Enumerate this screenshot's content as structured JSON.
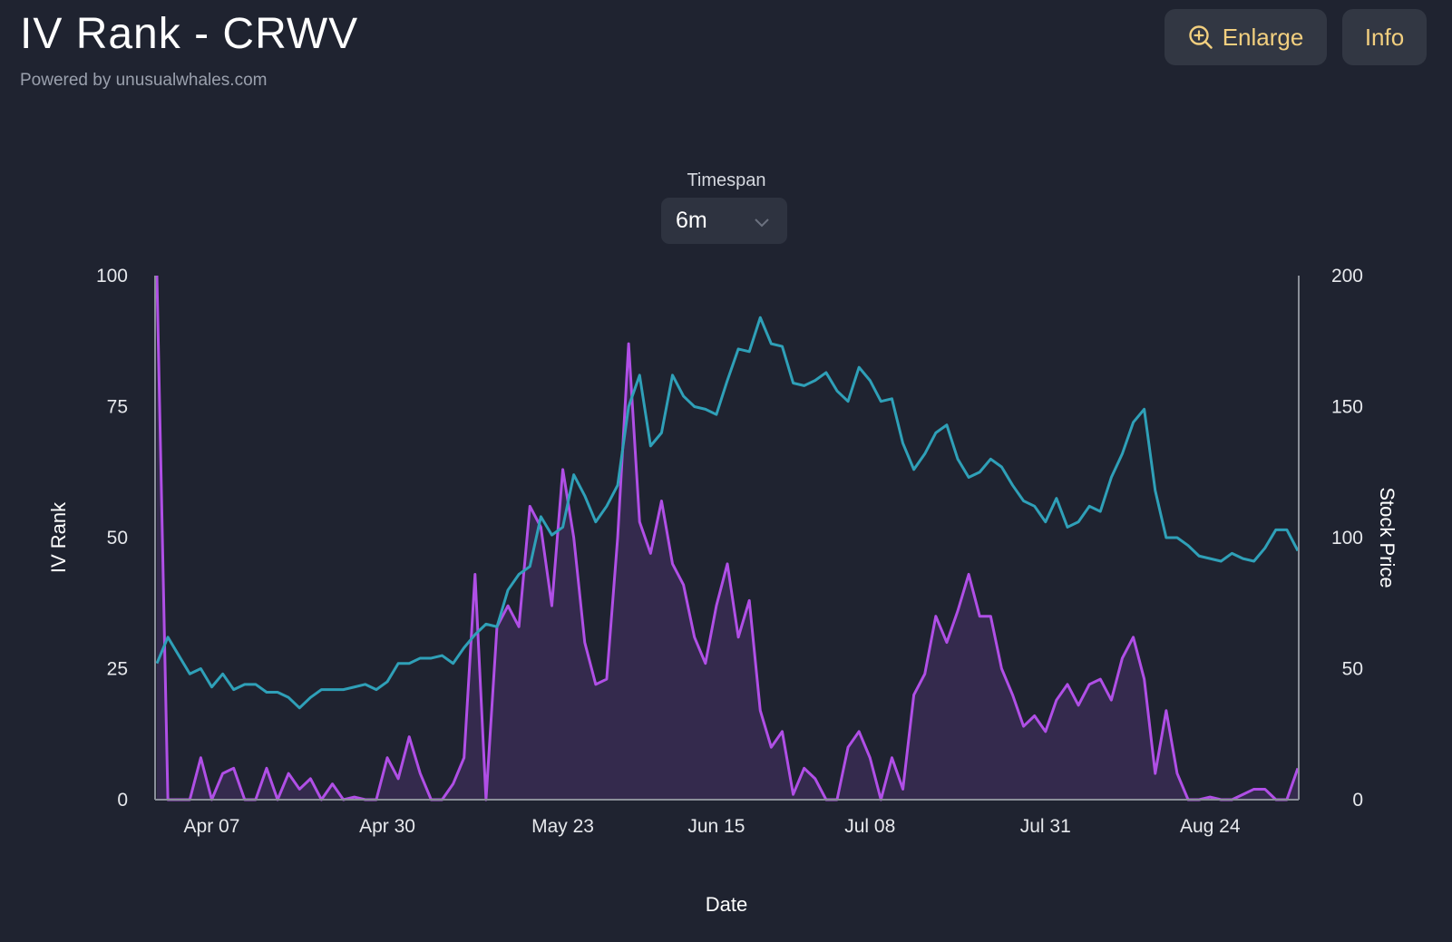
{
  "header": {
    "title": "IV Rank - CRWV",
    "subtitle": "Powered by unusualwhales.com"
  },
  "toolbar": {
    "enlarge_label": "Enlarge",
    "enlarge_icon": "zoom-in-icon",
    "info_label": "Info",
    "button_text_color": "#f2cf7f"
  },
  "timespan": {
    "label": "Timespan",
    "selected": "6m",
    "icon": "chevron-down-icon"
  },
  "chart_data": {
    "type": "line",
    "xlabel": "Date",
    "ylabel_left": "IV Rank",
    "ylabel_right": "Stock Price",
    "ylim_left": [
      0,
      100
    ],
    "ylim_right": [
      0,
      200
    ],
    "yticks_left": [
      "0",
      "25",
      "50",
      "75",
      "100"
    ],
    "yticks_right": [
      "0",
      "50",
      "100",
      "150",
      "200"
    ],
    "x_tick_labels": [
      "Apr 07",
      "Apr 30",
      "May 23",
      "Jun 15",
      "Jul 08",
      "Jul 31",
      "Aug 24"
    ],
    "x_tick_index": [
      5,
      21,
      37,
      51,
      65,
      81,
      96
    ],
    "grid": false,
    "series": [
      {
        "name": "IV Rank",
        "axis": "left",
        "color": "#b04fe6",
        "fill": true,
        "values": [
          100,
          0,
          0,
          0,
          8,
          0,
          5,
          6,
          0,
          0,
          6,
          0,
          5,
          2,
          4,
          0,
          3,
          0,
          0.5,
          0,
          0,
          8,
          4,
          12,
          5,
          0,
          0,
          3,
          8,
          43,
          0,
          33,
          37,
          33,
          56,
          52,
          37,
          63,
          50,
          30,
          22,
          23,
          50,
          87,
          53,
          47,
          57,
          45,
          41,
          31,
          26,
          37,
          45,
          31,
          38,
          17,
          10,
          13,
          1,
          6,
          4,
          0,
          0,
          10,
          13,
          8,
          0,
          8,
          2,
          20,
          24,
          35,
          30,
          36,
          43,
          35,
          35,
          25,
          20,
          14,
          16,
          13,
          19,
          22,
          18,
          22,
          23,
          19,
          27,
          31,
          23,
          5,
          17,
          5,
          0,
          0,
          0.5,
          0,
          0,
          1,
          2,
          2,
          0,
          0,
          6
        ]
      },
      {
        "name": "Stock Price",
        "axis": "right",
        "color": "#2fa0b8",
        "fill": false,
        "values": [
          52,
          62,
          55,
          48,
          50,
          43,
          48,
          42,
          44,
          44,
          41,
          41,
          39,
          35,
          39,
          42,
          42,
          42,
          43,
          44,
          42,
          45,
          52,
          52,
          54,
          54,
          55,
          52,
          58,
          63,
          67,
          66,
          80,
          86,
          89,
          108,
          101,
          104,
          124,
          116,
          106,
          112,
          120,
          150,
          162,
          135,
          140,
          162,
          154,
          150,
          149,
          147,
          160,
          172,
          171,
          184,
          174,
          173,
          159,
          158,
          160,
          163,
          156,
          152,
          165,
          160,
          152,
          153,
          136,
          126,
          132,
          140,
          143,
          130,
          123,
          125,
          130,
          127,
          120,
          114,
          112,
          106,
          115,
          104,
          106,
          112,
          110,
          123,
          132,
          144,
          149,
          118,
          100,
          100,
          97,
          93,
          92,
          91,
          94,
          92,
          91,
          96,
          103,
          103,
          95
        ]
      }
    ]
  }
}
